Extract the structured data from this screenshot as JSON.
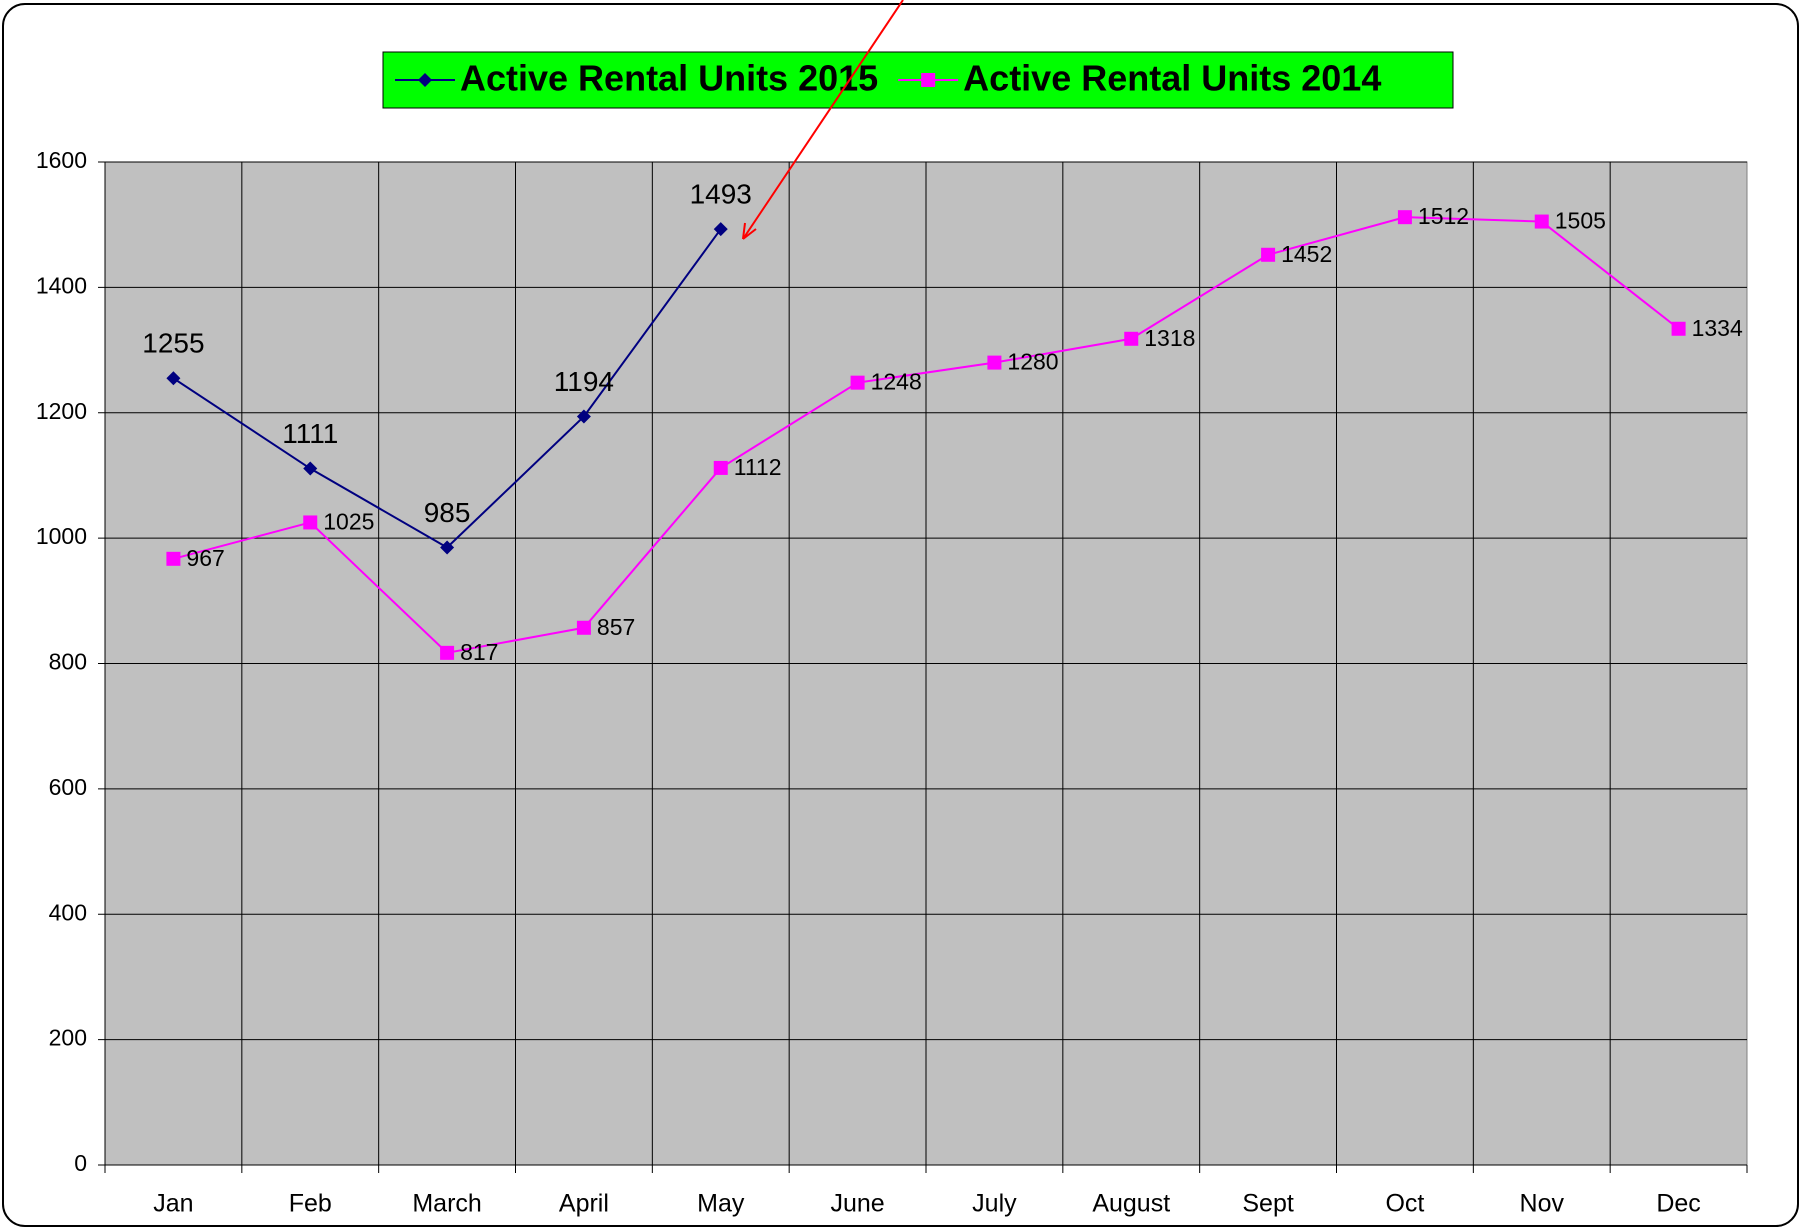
{
  "chart_data": {
    "type": "line",
    "categories": [
      "Jan",
      "Feb",
      "March",
      "April",
      "May",
      "June",
      "July",
      "August",
      "Sept",
      "Oct",
      "Nov",
      "Dec"
    ],
    "series": [
      {
        "name": "Active Rental Units 2015",
        "color": "#000080",
        "marker": "diamond",
        "values": [
          1255,
          1111,
          985,
          1194,
          1493,
          null,
          null,
          null,
          null,
          null,
          null,
          null
        ]
      },
      {
        "name": "Active Rental Units 2014",
        "color": "#ff00ff",
        "marker": "square",
        "values": [
          967,
          1025,
          817,
          857,
          1112,
          1248,
          1280,
          1318,
          1452,
          1512,
          1505,
          1334
        ]
      }
    ],
    "ylim": [
      0,
      1600
    ],
    "yticks": [
      0,
      200,
      400,
      600,
      800,
      1000,
      1200,
      1400,
      1600
    ],
    "grid": true,
    "legend": "top"
  }
}
